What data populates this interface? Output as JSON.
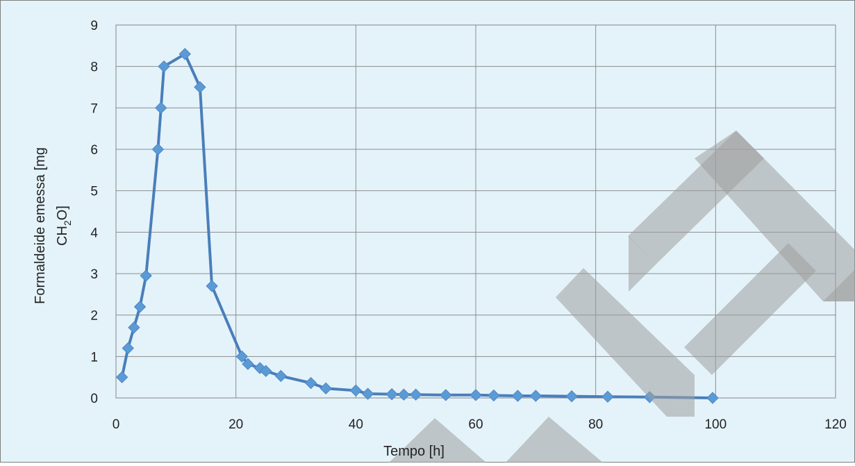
{
  "chart_data": {
    "type": "line",
    "title": "",
    "xlabel": "Tempo [h]",
    "ylabel": {
      "line1": "Formaldeide emessa [mg",
      "line2_main": "CH",
      "line2_sub": "2",
      "line2_end": "O]"
    },
    "xlim": [
      0,
      120
    ],
    "ylim": [
      0,
      9
    ],
    "x_ticks": [
      0,
      20,
      40,
      60,
      80,
      100,
      120
    ],
    "y_ticks": [
      0,
      1,
      2,
      3,
      4,
      5,
      6,
      7,
      8,
      9
    ],
    "grid": true,
    "legend": "none",
    "series": [
      {
        "color": "#4a7ebb",
        "marker_color": "#5b9bd5",
        "marker": "diamond",
        "x": [
          1,
          2,
          3,
          4,
          5,
          7,
          7.5,
          8,
          11.5,
          14,
          16,
          21,
          22,
          24,
          25,
          27.5,
          32.5,
          35,
          40,
          42,
          46,
          48,
          50,
          55,
          60,
          63,
          67,
          70,
          76,
          82,
          89,
          99.5
        ],
        "y": [
          0.5,
          1.2,
          1.7,
          2.2,
          2.95,
          6.0,
          7.0,
          8.0,
          8.3,
          7.5,
          2.7,
          1.0,
          0.82,
          0.72,
          0.65,
          0.53,
          0.36,
          0.23,
          0.18,
          0.1,
          0.09,
          0.08,
          0.08,
          0.07,
          0.07,
          0.06,
          0.05,
          0.05,
          0.04,
          0.03,
          0.02,
          0.0
        ]
      }
    ],
    "background_color": "#e4f3fa",
    "plot_border_color": "#868686",
    "grid_color": "#8c8c8c",
    "watermark_text": "SAMPLE"
  }
}
